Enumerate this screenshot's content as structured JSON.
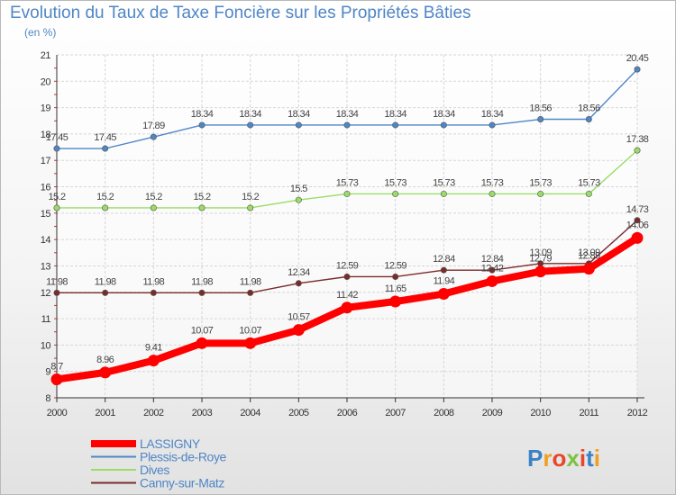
{
  "title": "Evolution du Taux de Taxe Foncière sur les Propriétés Bâties",
  "unit": "(en %)",
  "brand": "Proxiti",
  "chart_data": {
    "type": "line",
    "x": [
      "2000",
      "2001",
      "2002",
      "2003",
      "2004",
      "2005",
      "2006",
      "2007",
      "2008",
      "2009",
      "2010",
      "2011",
      "2012"
    ],
    "ylim": [
      8,
      21
    ],
    "yticks": [
      8,
      9,
      10,
      11,
      12,
      13,
      14,
      15,
      16,
      17,
      18,
      19,
      20,
      21
    ],
    "grid": true,
    "legend": "bottom-left",
    "series": [
      {
        "name": "LASSIGNY",
        "color": "#ff0000",
        "values": [
          8.7,
          8.96,
          9.41,
          10.07,
          10.07,
          10.57,
          11.42,
          11.65,
          11.94,
          12.42,
          12.79,
          12.89,
          14.06
        ],
        "labels": [
          "8.7",
          "8.96",
          "9.41",
          "10.07",
          "10.07",
          "10.57",
          "11.42",
          "11.65",
          "11.94",
          "12.42",
          "12.79",
          "12.89",
          "14.06"
        ]
      },
      {
        "name": "Plessis-de-Roye",
        "color": "#4f86c6",
        "values": [
          17.45,
          17.45,
          17.89,
          18.34,
          18.34,
          18.34,
          18.34,
          18.34,
          18.34,
          18.34,
          18.56,
          18.56,
          20.45
        ],
        "labels": [
          "17.45",
          "17.45",
          "17.89",
          "18.34",
          "18.34",
          "18.34",
          "18.34",
          "18.34",
          "18.34",
          "18.34",
          "18.56",
          "18.56",
          "20.45"
        ]
      },
      {
        "name": "Dives",
        "color": "#99dd66",
        "values": [
          15.2,
          15.2,
          15.2,
          15.2,
          15.2,
          15.5,
          15.73,
          15.73,
          15.73,
          15.73,
          15.73,
          15.73,
          17.38
        ],
        "labels": [
          "15.2",
          "15.2",
          "15.2",
          "15.2",
          "15.2",
          "15.5",
          "15.73",
          "15.73",
          "15.73",
          "15.73",
          "15.73",
          "15.73",
          "17.38"
        ]
      },
      {
        "name": "Canny-sur-Matz",
        "color": "#7b2b2b",
        "values": [
          11.98,
          11.98,
          11.98,
          11.98,
          11.98,
          12.34,
          12.59,
          12.59,
          12.84,
          12.84,
          13.09,
          13.09,
          14.73
        ],
        "labels": [
          "11.98",
          "11.98",
          "11.98",
          "11.98",
          "11.98",
          "12.34",
          "12.59",
          "12.59",
          "12.84",
          "12.84",
          "13.09",
          "13.09",
          "14.73"
        ]
      }
    ]
  }
}
